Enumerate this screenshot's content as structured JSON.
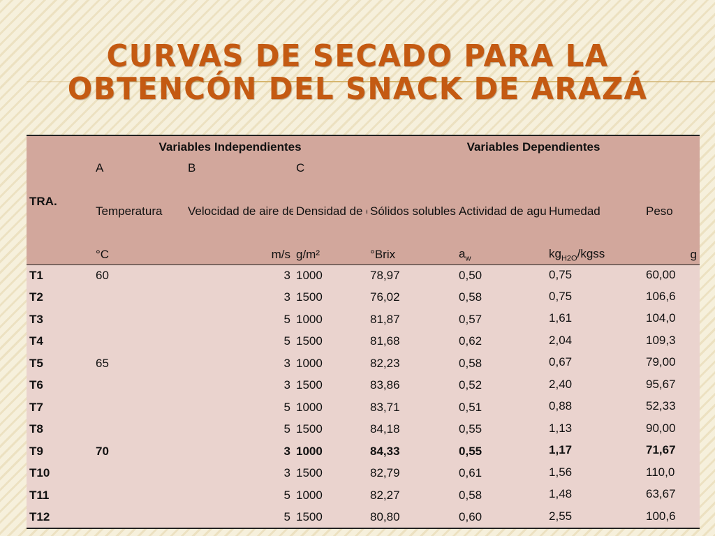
{
  "slide": {
    "title_line1": "CURVAS DE  SECADO PARA LA",
    "title_line2": "OBTENCÓN DEL SNACK DE ARAZÁ"
  },
  "table": {
    "group_independent": "Variables  Independientes",
    "group_dependent": "Variables Dependientes",
    "factor_a": "A",
    "factor_b": "B",
    "factor_c": "C",
    "tra_label": "TRA.",
    "temperatura": "Temperatura",
    "velocidad": "Velocidad de aire de secado",
    "densidad": "Densidad de carga",
    "solidos": "Sólidos solubles",
    "actividad": "Actividad de agua",
    "humedad": "Humedad",
    "peso": "Peso",
    "unit_temp": "°C",
    "unit_vel": "m/s",
    "unit_dens": "g/m²",
    "unit_brix": "°Brix",
    "unit_aw_main": "a",
    "unit_aw_sub": "w",
    "unit_hum_a": "kg",
    "unit_hum_sub": "H2O",
    "unit_hum_b": "/kgss",
    "unit_peso": "g",
    "rows": [
      {
        "tra": "T1",
        "temp": "60",
        "vel": "3",
        "dens": "1000",
        "brix": "78,97",
        "aw": "0,50",
        "hum": "0,75",
        "peso": "60,00"
      },
      {
        "tra": "T2",
        "temp": "",
        "vel": "3",
        "dens": "1500",
        "brix": "76,02",
        "aw": "0,58",
        "hum": "0,75",
        "peso": "106,6"
      },
      {
        "tra": "T3",
        "temp": "",
        "vel": "5",
        "dens": "1000",
        "brix": "81,87",
        "aw": "0,57",
        "hum": "1,61",
        "peso": "104,0"
      },
      {
        "tra": "T4",
        "temp": "",
        "vel": "5",
        "dens": "1500",
        "brix": "81,68",
        "aw": "0,62",
        "hum": "2,04",
        "peso": "109,3"
      },
      {
        "tra": "T5",
        "temp": "65",
        "vel": "3",
        "dens": "1000",
        "brix": "82,23",
        "aw": "0,58",
        "hum": "0,67",
        "peso": "79,00"
      },
      {
        "tra": "T6",
        "temp": "",
        "vel": "3",
        "dens": "1500",
        "brix": "83,86",
        "aw": "0,52",
        "hum": "2,40",
        "peso": "95,67"
      },
      {
        "tra": "T7",
        "temp": "",
        "vel": "5",
        "dens": "1000",
        "brix": "83,71",
        "aw": "0,51",
        "hum": "0,88",
        "peso": "52,33"
      },
      {
        "tra": "T8",
        "temp": "",
        "vel": "5",
        "dens": "1500",
        "brix": "84,18",
        "aw": "0,55",
        "hum": "1,13",
        "peso": "90,00"
      },
      {
        "tra": "T9",
        "temp": "70",
        "vel": "3",
        "dens": "1000",
        "brix": "84,33",
        "aw": "0,55",
        "hum": "1,17",
        "peso": "71,67",
        "bold": true
      },
      {
        "tra": "T10",
        "temp": "",
        "vel": "3",
        "dens": "1500",
        "brix": "82,79",
        "aw": "0,61",
        "hum": "1,56",
        "peso": "110,0"
      },
      {
        "tra": "T11",
        "temp": "",
        "vel": "5",
        "dens": "1000",
        "brix": "82,27",
        "aw": "0,58",
        "hum": "1,48",
        "peso": "63,67"
      },
      {
        "tra": "T12",
        "temp": "",
        "vel": "5",
        "dens": "1500",
        "brix": "80,80",
        "aw": "0,60",
        "hum": "2,55",
        "peso": "100,6"
      }
    ]
  }
}
